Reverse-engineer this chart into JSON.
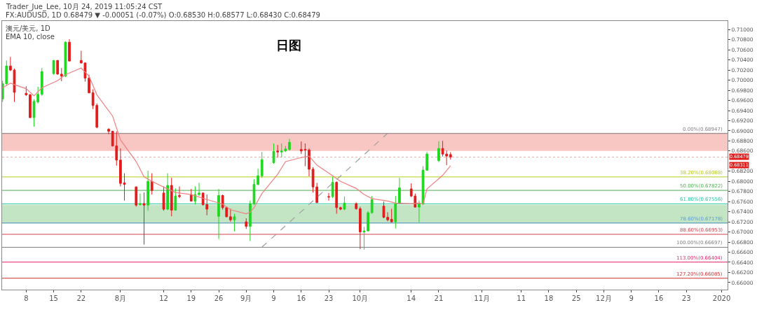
{
  "chart_data": {
    "type": "candlestick",
    "title": "日图",
    "annotations": [
      "Trader_Jue_Lee, 10月 24, 2019 11:05:24 CST",
      "FX:AUDUSD, 1D 0.68479 ▼ -0.00051 (-0.07%) O:0.68530 H:0.68577 L:0.68430 C:0.68479",
      "澳元/美元, 1D",
      "EMA 10, close",
      "0.68311"
    ],
    "x": [
      "2019-07-02",
      "2019-07-03",
      "2019-07-04",
      "2019-07-05",
      "2019-07-08",
      "2019-07-09",
      "2019-07-10",
      "2019-07-11",
      "2019-07-12",
      "2019-07-15",
      "2019-07-16",
      "2019-07-17",
      "2019-07-18",
      "2019-07-19",
      "2019-07-22",
      "2019-07-23",
      "2019-07-24",
      "2019-07-25",
      "2019-07-26",
      "2019-07-29",
      "2019-07-30",
      "2019-07-31",
      "2019-08-01",
      "2019-08-02",
      "2019-08-05",
      "2019-08-06",
      "2019-08-07",
      "2019-08-08",
      "2019-08-09",
      "2019-08-12",
      "2019-08-13",
      "2019-08-14",
      "2019-08-15",
      "2019-08-16",
      "2019-08-19",
      "2019-08-20",
      "2019-08-21",
      "2019-08-22",
      "2019-08-23",
      "2019-08-26",
      "2019-08-27",
      "2019-08-28",
      "2019-08-29",
      "2019-08-30",
      "2019-09-02",
      "2019-09-03",
      "2019-09-04",
      "2019-09-05",
      "2019-09-06",
      "2019-09-09",
      "2019-09-10",
      "2019-09-11",
      "2019-09-12",
      "2019-09-13",
      "2019-09-16",
      "2019-09-17",
      "2019-09-18",
      "2019-09-19",
      "2019-09-20",
      "2019-09-23",
      "2019-09-24",
      "2019-09-25",
      "2019-09-26",
      "2019-09-27",
      "2019-09-30",
      "2019-10-01",
      "2019-10-02",
      "2019-10-03",
      "2019-10-04",
      "2019-10-07",
      "2019-10-08",
      "2019-10-09",
      "2019-10-10",
      "2019-10-11",
      "2019-10-14",
      "2019-10-15",
      "2019-10-16",
      "2019-10-17",
      "2019-10-18",
      "2019-10-21",
      "2019-10-22",
      "2019-10-23",
      "2019-10-24"
    ],
    "ohlc": [
      [
        0.6963,
        0.6999,
        0.6957,
        0.6993
      ],
      [
        0.6993,
        0.7039,
        0.699,
        0.7028
      ],
      [
        0.7028,
        0.7046,
        0.7018,
        0.702
      ],
      [
        0.702,
        0.7023,
        0.6957,
        0.6976
      ],
      [
        0.6974,
        0.6988,
        0.6969,
        0.6971
      ],
      [
        0.6971,
        0.6973,
        0.6925,
        0.6926
      ],
      [
        0.6926,
        0.6962,
        0.6908,
        0.6958
      ],
      [
        0.6957,
        0.6987,
        0.6954,
        0.6972
      ],
      [
        0.6972,
        0.7024,
        0.6969,
        0.7017
      ],
      [
        0.7013,
        0.704,
        0.7011,
        0.7039
      ],
      [
        0.7039,
        0.704,
        0.7011,
        0.7012
      ],
      [
        0.7012,
        0.7024,
        0.6998,
        0.7008
      ],
      [
        0.7008,
        0.7077,
        0.7006,
        0.7075
      ],
      [
        0.7075,
        0.7081,
        0.7037,
        0.7038
      ],
      [
        0.7039,
        0.7058,
        0.7033,
        0.7034
      ],
      [
        0.7034,
        0.7035,
        0.6997,
        0.7004
      ],
      [
        0.7004,
        0.7011,
        0.6974,
        0.6975
      ],
      [
        0.6975,
        0.6982,
        0.6943,
        0.695
      ],
      [
        0.695,
        0.6954,
        0.6905,
        0.6907
      ],
      [
        0.6903,
        0.6905,
        0.6893,
        0.6899
      ],
      [
        0.6899,
        0.69,
        0.6869,
        0.687
      ],
      [
        0.687,
        0.6899,
        0.6831,
        0.6842
      ],
      [
        0.6842,
        0.6865,
        0.679,
        0.6796
      ],
      [
        0.6797,
        0.6816,
        0.6762,
        0.6794
      ],
      [
        0.6789,
        0.679,
        0.675,
        0.6753
      ],
      [
        0.6754,
        0.6776,
        0.6752,
        0.6756
      ],
      [
        0.6756,
        0.6778,
        0.6675,
        0.6753
      ],
      [
        0.6753,
        0.6821,
        0.6742,
        0.68
      ],
      [
        0.68,
        0.6816,
        0.6774,
        0.6782
      ],
      [
        0.6777,
        0.679,
        0.6742,
        0.6745
      ],
      [
        0.6745,
        0.6816,
        0.6743,
        0.6792
      ],
      [
        0.6792,
        0.6807,
        0.6731,
        0.6743
      ],
      [
        0.6743,
        0.6786,
        0.6742,
        0.6771
      ],
      [
        0.6772,
        0.679,
        0.6767,
        0.677
      ],
      [
        0.6774,
        0.6785,
        0.676,
        0.6761
      ],
      [
        0.6761,
        0.679,
        0.6754,
        0.6774
      ],
      [
        0.6774,
        0.6797,
        0.6771,
        0.6777
      ],
      [
        0.6777,
        0.6778,
        0.6752,
        0.6754
      ],
      [
        0.6754,
        0.6774,
        0.6733,
        0.6745
      ],
      [
        0.6731,
        0.6785,
        0.6686,
        0.6772
      ],
      [
        0.6772,
        0.6774,
        0.6744,
        0.6748
      ],
      [
        0.6748,
        0.675,
        0.6729,
        0.673
      ],
      [
        0.673,
        0.6746,
        0.672,
        0.6724
      ],
      [
        0.6724,
        0.6736,
        0.6701,
        0.673
      ],
      [
        0.672,
        0.6727,
        0.6706,
        0.6711
      ],
      [
        0.6711,
        0.6762,
        0.6682,
        0.6756
      ],
      [
        0.6756,
        0.6804,
        0.6753,
        0.6794
      ],
      [
        0.6794,
        0.6825,
        0.6792,
        0.6811
      ],
      [
        0.6811,
        0.6858,
        0.6807,
        0.6843
      ],
      [
        0.6837,
        0.6875,
        0.6835,
        0.6859
      ],
      [
        0.686,
        0.6872,
        0.6847,
        0.6858
      ],
      [
        0.6858,
        0.6875,
        0.6847,
        0.686
      ],
      [
        0.686,
        0.687,
        0.6858,
        0.6864
      ],
      [
        0.6863,
        0.6884,
        0.6861,
        0.6877
      ],
      [
        0.6863,
        0.6879,
        0.6854,
        0.686
      ],
      [
        0.6863,
        0.6875,
        0.683,
        0.6862
      ],
      [
        0.6862,
        0.6865,
        0.681,
        0.6824
      ],
      [
        0.6824,
        0.6828,
        0.6778,
        0.6789
      ],
      [
        0.6789,
        0.6797,
        0.6757,
        0.6758
      ],
      [
        0.677,
        0.6777,
        0.6762,
        0.6769
      ],
      [
        0.677,
        0.6809,
        0.6767,
        0.6798
      ],
      [
        0.6798,
        0.68,
        0.6736,
        0.6748
      ],
      [
        0.6748,
        0.675,
        0.6743,
        0.6745
      ],
      [
        0.6745,
        0.677,
        0.6743,
        0.6757
      ],
      [
        0.6756,
        0.6758,
        0.6744,
        0.6746
      ],
      [
        0.6746,
        0.675,
        0.6666,
        0.67
      ],
      [
        0.67,
        0.671,
        0.6665,
        0.6702
      ],
      [
        0.6702,
        0.6741,
        0.6701,
        0.6738
      ],
      [
        0.6738,
        0.6771,
        0.6736,
        0.6764
      ],
      [
        0.6751,
        0.676,
        0.6727,
        0.6729
      ],
      [
        0.6729,
        0.6739,
        0.6721,
        0.6724
      ],
      [
        0.6725,
        0.6746,
        0.6719,
        0.672
      ],
      [
        0.672,
        0.6771,
        0.6707,
        0.6756
      ],
      [
        0.6757,
        0.6807,
        0.6755,
        0.6787
      ],
      [
        0.6785,
        0.6796,
        0.6769,
        0.6771
      ],
      [
        0.6771,
        0.6776,
        0.6748,
        0.6749
      ],
      [
        0.6749,
        0.6762,
        0.6719,
        0.6756
      ],
      [
        0.6755,
        0.683,
        0.6753,
        0.6822
      ],
      [
        0.6822,
        0.6858,
        0.6821,
        0.6854
      ],
      [
        0.6841,
        0.6879,
        0.6838,
        0.6865
      ],
      [
        0.6865,
        0.688,
        0.6849,
        0.6854
      ],
      [
        0.6854,
        0.6861,
        0.6832,
        0.685
      ],
      [
        0.6853,
        0.68577,
        0.6843,
        0.68479
      ]
    ],
    "colors": [
      "#1fd81f",
      "#1fd81f",
      "#e31b1b",
      "#e31b1b",
      "#e31b1b",
      "#e31b1b",
      "#1fd81f",
      "#1fd81f",
      "#1fd81f",
      "#1fd81f",
      "#e31b1b",
      "#e31b1b",
      "#1fd81f",
      "#e31b1b",
      "#e31b1b",
      "#e31b1b",
      "#e31b1b",
      "#e31b1b",
      "#e31b1b",
      "#e31b1b",
      "#e31b1b",
      "#e31b1b",
      "#e31b1b",
      "#e31b1b",
      "#e31b1b",
      "#1fd81f",
      "#e31b1b",
      "#1fd81f",
      "#e31b1b",
      "#e31b1b",
      "#1fd81f",
      "#e31b1b",
      "#1fd81f",
      "#e31b1b",
      "#e31b1b",
      "#1fd81f",
      "#1fd81f",
      "#e31b1b",
      "#e31b1b",
      "#1fd81f",
      "#e31b1b",
      "#e31b1b",
      "#e31b1b",
      "#1fd81f",
      "#e31b1b",
      "#1fd81f",
      "#1fd81f",
      "#1fd81f",
      "#1fd81f",
      "#1fd81f",
      "#e31b1b",
      "#1fd81f",
      "#1fd81f",
      "#1fd81f",
      "#e31b1b",
      "#e31b1b",
      "#e31b1b",
      "#e31b1b",
      "#e31b1b",
      "#e31b1b",
      "#1fd81f",
      "#e31b1b",
      "#e31b1b",
      "#1fd81f",
      "#e31b1b",
      "#e31b1b",
      "#1fd81f",
      "#1fd81f",
      "#1fd81f",
      "#e31b1b",
      "#e31b1b",
      "#e31b1b",
      "#1fd81f",
      "#1fd81f",
      "#e31b1b",
      "#e31b1b",
      "#1fd81f",
      "#1fd81f",
      "#1fd81f",
      "#1fd81f",
      "#e31b1b",
      "#e31b1b",
      "#e31b1b"
    ],
    "series": [
      {
        "type": "line",
        "color": "#f08080",
        "x": [
          "2019-07-02",
          "2019-07-04",
          "2019-07-08",
          "2019-07-10",
          "2019-07-12",
          "2019-07-16",
          "2019-07-18",
          "2019-07-22",
          "2019-07-24",
          "2019-07-26",
          "2019-07-30",
          "2019-08-01",
          "2019-08-05",
          "2019-08-07",
          "2019-08-09",
          "2019-08-13",
          "2019-08-15",
          "2019-08-19",
          "2019-08-21",
          "2019-08-23",
          "2019-08-27",
          "2019-08-29",
          "2019-09-02",
          "2019-09-03",
          "2019-09-04",
          "2019-09-06",
          "2019-09-10",
          "2019-09-12",
          "2019-09-16",
          "2019-09-18",
          "2019-09-20",
          "2019-09-24",
          "2019-09-26",
          "2019-09-30",
          "2019-10-02",
          "2019-10-04",
          "2019-10-08",
          "2019-10-10",
          "2019-10-14",
          "2019-10-16",
          "2019-10-17",
          "2019-10-18",
          "2019-10-22",
          "2019-10-24"
        ],
        "values": [
          0.6985,
          0.6994,
          0.6983,
          0.6969,
          0.6985,
          0.6999,
          0.7011,
          0.7024,
          0.7008,
          0.6971,
          0.6929,
          0.6882,
          0.6839,
          0.6809,
          0.68,
          0.6785,
          0.6778,
          0.6774,
          0.6769,
          0.6764,
          0.6755,
          0.6744,
          0.6736,
          0.6739,
          0.6748,
          0.6776,
          0.6814,
          0.6839,
          0.6847,
          0.685,
          0.6832,
          0.6811,
          0.68,
          0.6786,
          0.6774,
          0.6766,
          0.6761,
          0.6757,
          0.6756,
          0.6757,
          0.6755,
          0.6785,
          0.6812,
          0.6831
        ]
      },
      {
        "type": "line",
        "color": "#9e9e9e",
        "line_style": "dashed",
        "x": [
          "2019-09-06",
          "2019-10-08"
        ],
        "values": [
          0.667,
          0.6895
        ]
      }
    ],
    "bands": [
      {
        "axis": "y",
        "from": 0.6861,
        "to": 0.68947,
        "color": "#f4a19c"
      },
      {
        "axis": "y",
        "from": 0.6717,
        "to": 0.6753,
        "color": "#9ed49e"
      }
    ],
    "ref_lines": [
      {
        "axis": "y",
        "value": 0.68479,
        "label": "0.68479",
        "color": "#f4a6a6",
        "line_style": "dotted"
      },
      {
        "axis": "y",
        "value": 0.68947,
        "label": "0.00%(0.68947)",
        "color": "#808080"
      },
      {
        "axis": "y",
        "value": 0.68088,
        "label": "38.20%(0.68088)",
        "color": "#b5cc18"
      },
      {
        "axis": "y",
        "value": 0.67822,
        "label": "50.00%(0.67822)",
        "color": "#4caf50"
      },
      {
        "axis": "y",
        "value": 0.67556,
        "label": "61.80%(0.67556)",
        "color": "#26c6a0"
      },
      {
        "axis": "y",
        "value": 0.67178,
        "label": "78.60%(0.67178)",
        "color": "#5b9bd5"
      },
      {
        "axis": "y",
        "value": 0.66953,
        "label": "88.60%(0.66953)",
        "color": "#d0404c"
      },
      {
        "axis": "y",
        "value": 0.66697,
        "label": "100.00%(0.66697)",
        "color": "#808080"
      },
      {
        "axis": "y",
        "value": 0.66404,
        "label": "113.00%(0.66404)",
        "color": "#e91e63"
      },
      {
        "axis": "y",
        "value": 0.66085,
        "label": "127.20%(0.66085)",
        "color": "#d32f2f"
      }
    ],
    "xlim": [
      "2019-07-01T21:00",
      "2020-01-02T12:00"
    ],
    "xticks": [
      {
        "value": "2019-07-08",
        "label": "8"
      },
      {
        "value": "2019-07-15",
        "label": "15"
      },
      {
        "value": "2019-07-22",
        "label": "22"
      },
      {
        "value": "2019-08-01",
        "label": "8月"
      },
      {
        "value": "2019-08-12",
        "label": "12"
      },
      {
        "value": "2019-08-19",
        "label": "19"
      },
      {
        "value": "2019-08-26",
        "label": "26"
      },
      {
        "value": "2019-09-02",
        "label": "9月"
      },
      {
        "value": "2019-09-09",
        "label": "9"
      },
      {
        "value": "2019-09-16",
        "label": "16"
      },
      {
        "value": "2019-09-23",
        "label": "23"
      },
      {
        "value": "2019-10-01",
        "label": "10月"
      },
      {
        "value": "2019-10-14",
        "label": "14"
      },
      {
        "value": "2019-10-21",
        "label": "21"
      },
      {
        "value": "2019-11-01",
        "label": "11月"
      },
      {
        "value": "2019-11-11",
        "label": "11"
      },
      {
        "value": "2019-11-18",
        "label": "18"
      },
      {
        "value": "2019-11-25",
        "label": "25"
      },
      {
        "value": "2019-12-02",
        "label": "12月"
      },
      {
        "value": "2019-12-09",
        "label": "9"
      },
      {
        "value": "2019-12-16",
        "label": "16"
      },
      {
        "value": "2019-12-23",
        "label": "23"
      },
      {
        "value": "2020-01-01",
        "label": "2020"
      }
    ],
    "ylim": [
      0.6586,
      0.7117
    ],
    "yticks": [
      {
        "value": 0.71,
        "label": "0.71000"
      },
      {
        "value": 0.708,
        "label": "0.70800"
      },
      {
        "value": 0.706,
        "label": "0.70600"
      },
      {
        "value": 0.704,
        "label": "0.70400"
      },
      {
        "value": 0.702,
        "label": "0.70200"
      },
      {
        "value": 0.7,
        "label": "0.70000"
      },
      {
        "value": 0.698,
        "label": "0.69800"
      },
      {
        "value": 0.696,
        "label": "0.69600"
      },
      {
        "value": 0.694,
        "label": "0.69400"
      },
      {
        "value": 0.692,
        "label": "0.69200"
      },
      {
        "value": 0.69,
        "label": "0.69000"
      },
      {
        "value": 0.688,
        "label": "0.68800"
      },
      {
        "value": 0.686,
        "label": "0.68600"
      },
      {
        "value": 0.682,
        "label": "0.68200"
      },
      {
        "value": 0.68,
        "label": "0.68000"
      },
      {
        "value": 0.678,
        "label": "0.67800"
      },
      {
        "value": 0.676,
        "label": "0.67600"
      },
      {
        "value": 0.674,
        "label": "0.67400"
      },
      {
        "value": 0.672,
        "label": "0.67200"
      },
      {
        "value": 0.67,
        "label": "0.67000"
      },
      {
        "value": 0.668,
        "label": "0.66800"
      },
      {
        "value": 0.666,
        "label": "0.66600"
      },
      {
        "value": 0.664,
        "label": "0.66400"
      },
      {
        "value": 0.662,
        "label": "0.66200"
      },
      {
        "value": 0.66,
        "label": "0.66000"
      }
    ]
  }
}
